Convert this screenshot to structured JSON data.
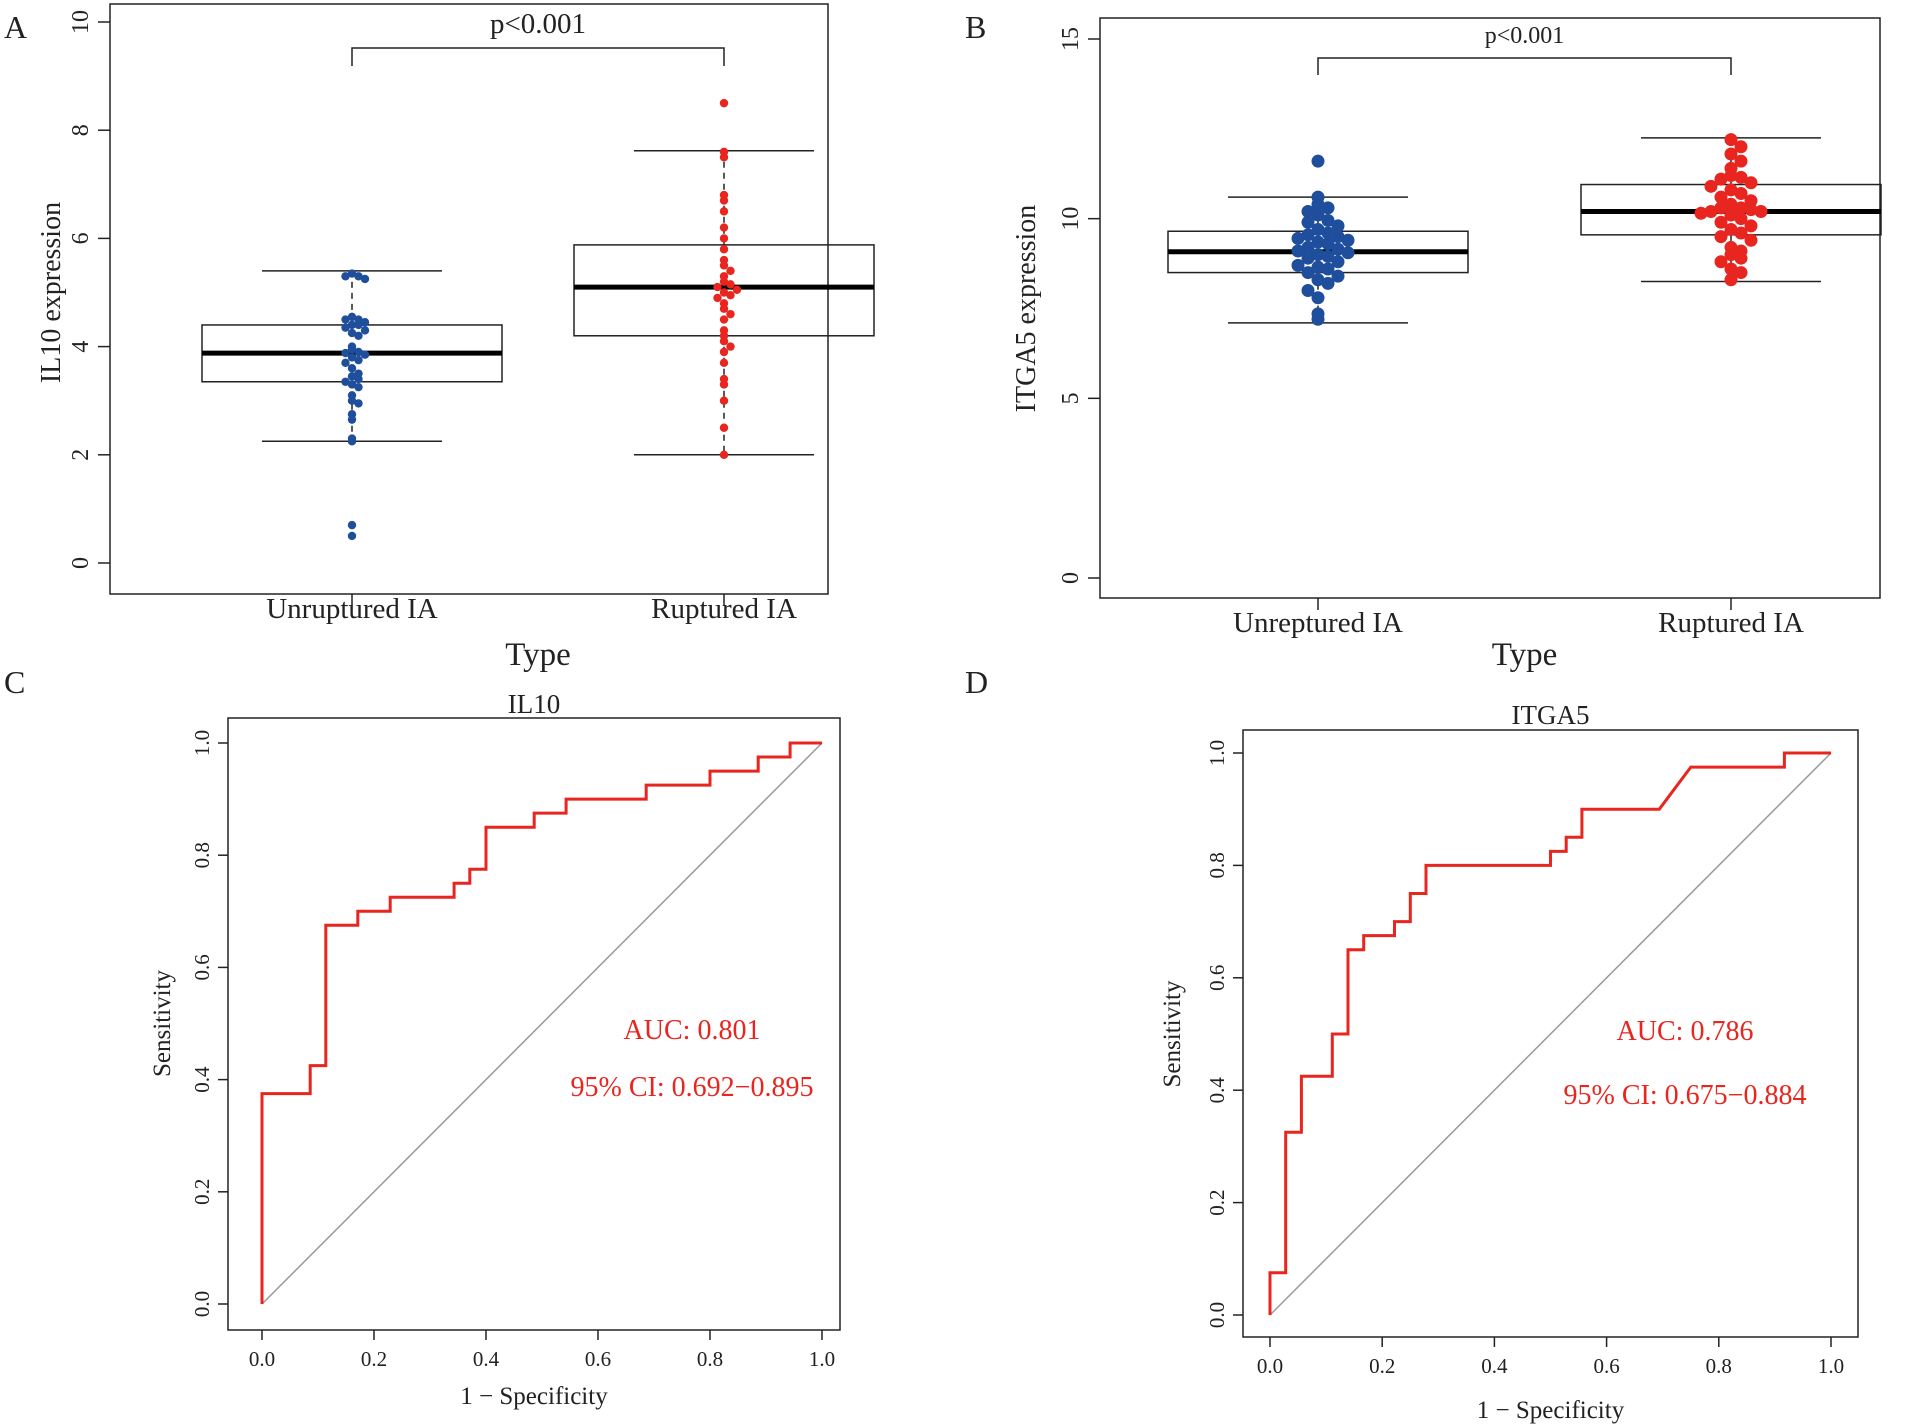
{
  "colors": {
    "group1_points": "#1f4e9c",
    "group2_points": "#e8251f",
    "roc_line": "#e8251f",
    "diagonal": "#999999",
    "axis": "#222222",
    "auc_text": "#e8251f"
  },
  "chart_data": [
    {
      "panel": "A",
      "type": "box",
      "xlabel": "Type",
      "ylabel": "IL10 expression",
      "categories": [
        "Unruptured IA",
        "Ruptured IA"
      ],
      "ylim": [
        0,
        10
      ],
      "yticks": [
        "0",
        "2",
        "4",
        "6",
        "8",
        "10"
      ],
      "annotation": "p<0.001",
      "boxes": [
        {
          "min": 2.25,
          "q1": 3.35,
          "median": 3.88,
          "q3": 4.4,
          "max": 5.4
        },
        {
          "min": 2.0,
          "q1": 4.2,
          "median": 5.1,
          "q3": 5.88,
          "max": 7.62
        }
      ],
      "points": [
        [
          5.35,
          5.3,
          5.3,
          5.25,
          4.55,
          4.5,
          4.5,
          4.45,
          4.4,
          4.4,
          4.35,
          4.3,
          4.25,
          4.2,
          4.0,
          3.95,
          3.9,
          3.88,
          3.85,
          3.8,
          3.75,
          3.7,
          3.6,
          3.5,
          3.45,
          3.4,
          3.35,
          3.3,
          3.25,
          3.1,
          3.0,
          2.95,
          2.75,
          2.65,
          2.3,
          2.25,
          0.7,
          0.5
        ],
        [
          8.5,
          7.6,
          7.5,
          6.8,
          6.7,
          6.5,
          6.2,
          6.0,
          5.8,
          5.6,
          5.5,
          5.4,
          5.3,
          5.2,
          5.15,
          5.1,
          5.05,
          5.0,
          4.95,
          4.9,
          4.8,
          4.7,
          4.6,
          4.5,
          4.3,
          4.2,
          4.1,
          4.0,
          3.9,
          3.7,
          3.4,
          3.3,
          3.0,
          2.5,
          2.0
        ]
      ]
    },
    {
      "panel": "B",
      "type": "box",
      "xlabel": "Type",
      "ylabel": "ITGA5 expression",
      "categories": [
        "Unreptured IA",
        "Ruptured IA"
      ],
      "ylim": [
        0,
        15
      ],
      "yticks": [
        "0",
        "5",
        "10",
        "15"
      ],
      "annotation": "p<0.001",
      "boxes": [
        {
          "min": 7.1,
          "q1": 8.5,
          "median": 9.08,
          "q3": 9.65,
          "max": 10.6
        },
        {
          "min": 8.25,
          "q1": 9.55,
          "median": 10.2,
          "q3": 10.95,
          "max": 12.25
        }
      ],
      "points": [
        [
          11.6,
          10.6,
          10.4,
          10.3,
          10.2,
          10.1,
          9.95,
          9.9,
          9.8,
          9.7,
          9.6,
          9.55,
          9.5,
          9.45,
          9.4,
          9.35,
          9.3,
          9.2,
          9.15,
          9.1,
          9.05,
          9.0,
          8.95,
          8.9,
          8.8,
          8.7,
          8.65,
          8.6,
          8.5,
          8.4,
          8.3,
          8.2,
          8.0,
          7.8,
          7.35,
          7.2
        ],
        [
          12.2,
          12.0,
          11.8,
          11.6,
          11.4,
          11.2,
          11.15,
          11.1,
          11.0,
          10.9,
          10.8,
          10.7,
          10.6,
          10.5,
          10.4,
          10.3,
          10.3,
          10.25,
          10.2,
          10.2,
          10.15,
          10.1,
          10.0,
          9.9,
          9.8,
          9.7,
          9.6,
          9.5,
          9.4,
          9.2,
          9.1,
          9.0,
          8.9,
          8.8,
          8.6,
          8.5,
          8.3
        ]
      ]
    },
    {
      "panel": "C",
      "type": "line",
      "title": "IL10",
      "xlabel": "1 − Specificity",
      "ylabel": "Sensitivity",
      "xlim": [
        0,
        1
      ],
      "ylim": [
        0,
        1
      ],
      "ticks": [
        "0.0",
        "0.2",
        "0.4",
        "0.6",
        "0.8",
        "1.0"
      ],
      "auc": "AUC: 0.801",
      "ci": "95% CI: 0.692−0.895",
      "x": [
        0,
        0,
        0.086,
        0.086,
        0.114,
        0.114,
        0.171,
        0.171,
        0.229,
        0.229,
        0.343,
        0.343,
        0.371,
        0.371,
        0.4,
        0.4,
        0.486,
        0.486,
        0.543,
        0.543,
        0.686,
        0.686,
        0.8,
        0.8,
        0.886,
        0.886,
        0.943,
        0.943,
        1.0
      ],
      "y": [
        0,
        0.375,
        0.375,
        0.425,
        0.425,
        0.675,
        0.675,
        0.7,
        0.7,
        0.725,
        0.725,
        0.75,
        0.75,
        0.775,
        0.775,
        0.85,
        0.85,
        0.875,
        0.875,
        0.9,
        0.9,
        0.925,
        0.925,
        0.95,
        0.95,
        0.975,
        0.975,
        1.0,
        1.0
      ]
    },
    {
      "panel": "D",
      "type": "line",
      "title": "ITGA5",
      "xlabel": "1 − Specificity",
      "ylabel": "Sensitivity",
      "xlim": [
        0,
        1
      ],
      "ylim": [
        0,
        1
      ],
      "ticks": [
        "0.0",
        "0.2",
        "0.4",
        "0.6",
        "0.8",
        "1.0"
      ],
      "auc": "AUC: 0.786",
      "ci": "95% CI: 0.675−0.884",
      "x": [
        0,
        0,
        0.028,
        0.028,
        0.056,
        0.056,
        0.111,
        0.111,
        0.139,
        0.139,
        0.167,
        0.167,
        0.222,
        0.222,
        0.25,
        0.25,
        0.278,
        0.278,
        0.5,
        0.5,
        0.528,
        0.528,
        0.556,
        0.556,
        0.583,
        0.583,
        0.694,
        0.694,
        0.75,
        0.75,
        0.917,
        0.917,
        1.0
      ],
      "y": [
        0,
        0.075,
        0.075,
        0.325,
        0.325,
        0.425,
        0.425,
        0.5,
        0.5,
        0.65,
        0.65,
        0.675,
        0.675,
        0.7,
        0.7,
        0.75,
        0.75,
        0.8,
        0.8,
        0.825,
        0.825,
        0.85,
        0.85,
        0.9,
        0.9,
        0.9,
        0.9,
        0.9,
        0.975,
        0.975,
        0.975,
        1.0,
        1.0
      ]
    }
  ]
}
